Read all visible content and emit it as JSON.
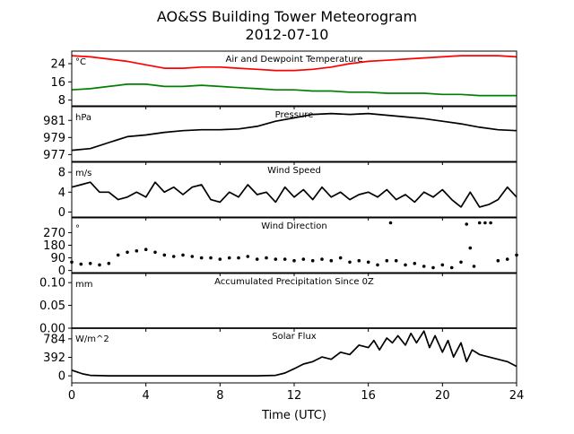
{
  "title": "AO&SS Building Tower Meteorogram",
  "subtitle": "2012-07-10",
  "xlabel": "Time (UTC)",
  "colors": {
    "temperature": "#ff0000",
    "dewpoint": "#008000",
    "default": "#000000"
  },
  "chart_data": [
    {
      "type": "line",
      "panel_title": "Air and Dewpoint Temperature",
      "unit": "°C",
      "x_unit": "hours UTC",
      "xlim": [
        0,
        24
      ],
      "ylim": [
        5.5,
        29.5
      ],
      "yticks": [
        8,
        16,
        24
      ],
      "series": [
        {
          "color_key": "temperature",
          "x": [
            0,
            1,
            2,
            3,
            4,
            5,
            6,
            7,
            8,
            9,
            10,
            11,
            12,
            13,
            14,
            15,
            16,
            17,
            18,
            19,
            20,
            21,
            22,
            23,
            24
          ],
          "y": [
            27.5,
            27,
            26,
            25,
            23.5,
            22,
            22,
            22.5,
            22.5,
            22,
            21.5,
            21,
            21,
            21.5,
            22.5,
            24,
            25,
            25.5,
            26,
            26.5,
            27,
            27.5,
            27.5,
            27.5,
            27
          ]
        },
        {
          "color_key": "dewpoint",
          "x": [
            0,
            1,
            2,
            3,
            4,
            5,
            6,
            7,
            8,
            9,
            10,
            11,
            12,
            13,
            14,
            15,
            16,
            17,
            18,
            19,
            20,
            21,
            22,
            23,
            24
          ],
          "y": [
            12.5,
            13,
            14,
            15,
            15,
            14,
            14,
            14.5,
            14,
            13.5,
            13,
            12.5,
            12.5,
            12,
            12,
            11.5,
            11.5,
            11,
            11,
            11,
            10.5,
            10.5,
            10,
            10,
            10
          ]
        }
      ]
    },
    {
      "type": "line",
      "panel_title": "Pressure",
      "unit": "hPa",
      "x_unit": "hours UTC",
      "xlim": [
        0,
        24
      ],
      "ylim": [
        976.2,
        982.6
      ],
      "yticks": [
        977,
        979,
        981
      ],
      "series": [
        {
          "color_key": "default",
          "x": [
            0,
            1,
            2,
            3,
            4,
            5,
            6,
            7,
            8,
            9,
            10,
            11,
            12,
            13,
            14,
            15,
            16,
            17,
            18,
            19,
            20,
            21,
            22,
            23,
            24
          ],
          "y": [
            977.5,
            977.7,
            978.4,
            979.1,
            979.3,
            979.6,
            979.8,
            979.9,
            979.9,
            980.0,
            980.3,
            980.9,
            981.3,
            981.7,
            981.8,
            981.7,
            981.8,
            981.6,
            981.4,
            981.2,
            980.9,
            980.6,
            980.2,
            979.9,
            979.8
          ]
        }
      ]
    },
    {
      "type": "line",
      "panel_title": "Wind Speed",
      "unit": "m/s",
      "x_unit": "hours UTC",
      "xlim": [
        0,
        24
      ],
      "ylim": [
        -1,
        10
      ],
      "yticks": [
        0,
        4,
        8
      ],
      "series": [
        {
          "color_key": "default",
          "x": [
            0,
            0.5,
            1,
            1.5,
            2,
            2.5,
            3,
            3.5,
            4,
            4.5,
            5,
            5.5,
            6,
            6.5,
            7,
            7.5,
            8,
            8.5,
            9,
            9.5,
            10,
            10.5,
            11,
            11.5,
            12,
            12.5,
            13,
            13.5,
            14,
            14.5,
            15,
            15.5,
            16,
            16.5,
            17,
            17.5,
            18,
            18.5,
            19,
            19.5,
            20,
            20.5,
            21,
            21.5,
            22,
            22.5,
            23,
            23.5,
            24
          ],
          "y": [
            5,
            5.5,
            6,
            4,
            4,
            2.5,
            3,
            4,
            3,
            6,
            4,
            5,
            3.5,
            5,
            5.5,
            2.5,
            2,
            4,
            3,
            5.5,
            3.5,
            4,
            2,
            5,
            3,
            4.5,
            2.5,
            5,
            3,
            4,
            2.5,
            3.5,
            4,
            3,
            4.5,
            2.5,
            3.5,
            2,
            4,
            3,
            4.5,
            2.5,
            1,
            4,
            1,
            1.5,
            2.5,
            5,
            3
          ]
        }
      ]
    },
    {
      "type": "scatter",
      "panel_title": "Wind Direction",
      "unit": "°",
      "x_unit": "hours UTC",
      "xlim": [
        0,
        24
      ],
      "ylim": [
        -15,
        375
      ],
      "yticks": [
        0,
        90,
        180,
        270
      ],
      "series": [
        {
          "color_key": "default",
          "x": [
            0,
            0.5,
            1,
            1.5,
            2,
            2.5,
            3,
            3.5,
            4,
            4.5,
            5,
            5.5,
            6,
            6.5,
            7,
            7.5,
            8,
            8.5,
            9,
            9.5,
            10,
            10.5,
            11,
            11.5,
            12,
            12.5,
            13,
            13.5,
            14,
            14.5,
            15,
            15.5,
            16,
            16.5,
            17,
            17.2,
            17.5,
            18,
            18.5,
            19,
            19.5,
            20,
            20.5,
            21,
            21.3,
            21.5,
            21.7,
            22,
            22.3,
            22.6,
            23,
            23.5,
            24
          ],
          "y": [
            60,
            45,
            50,
            40,
            50,
            110,
            130,
            140,
            150,
            130,
            110,
            100,
            110,
            100,
            90,
            90,
            80,
            90,
            90,
            100,
            80,
            90,
            80,
            80,
            70,
            80,
            70,
            80,
            70,
            90,
            60,
            70,
            60,
            40,
            70,
            340,
            70,
            40,
            50,
            30,
            20,
            40,
            20,
            60,
            330,
            160,
            30,
            340,
            340,
            340,
            70,
            80,
            110
          ]
        }
      ]
    },
    {
      "type": "line",
      "panel_title": "Accumulated Precipitation Since 0Z",
      "unit": "mm",
      "x_unit": "hours UTC",
      "xlim": [
        0,
        24
      ],
      "ylim": [
        0,
        0.12
      ],
      "yticks": [
        0.0,
        0.05,
        0.1
      ],
      "ytick_labels": [
        "0.00",
        "0.05",
        "0.10"
      ],
      "series": [
        {
          "color_key": "default",
          "x": [
            0,
            24
          ],
          "y": [
            0,
            0
          ]
        }
      ]
    },
    {
      "type": "line",
      "panel_title": "Solar Flux",
      "unit": "W/m^2",
      "x_unit": "hours UTC",
      "xlim": [
        0,
        24
      ],
      "ylim": [
        -150,
        1010
      ],
      "yticks": [
        0,
        392,
        784
      ],
      "series": [
        {
          "color_key": "default",
          "x": [
            0,
            0.3,
            0.6,
            1,
            2,
            4,
            6,
            8,
            10,
            11,
            11.5,
            12,
            12.5,
            13,
            13.5,
            14,
            14.5,
            15,
            15.5,
            16,
            16.3,
            16.6,
            17,
            17.3,
            17.6,
            18,
            18.3,
            18.6,
            19,
            19.3,
            19.6,
            20,
            20.3,
            20.6,
            21,
            21.3,
            21.6,
            22,
            22.5,
            23,
            23.5,
            24
          ],
          "y": [
            120,
            80,
            40,
            10,
            0,
            0,
            0,
            0,
            0,
            10,
            60,
            150,
            250,
            300,
            400,
            350,
            500,
            450,
            650,
            600,
            750,
            550,
            800,
            700,
            850,
            650,
            900,
            700,
            950,
            600,
            850,
            500,
            750,
            400,
            700,
            300,
            550,
            450,
            400,
            350,
            300,
            200
          ]
        }
      ]
    }
  ]
}
